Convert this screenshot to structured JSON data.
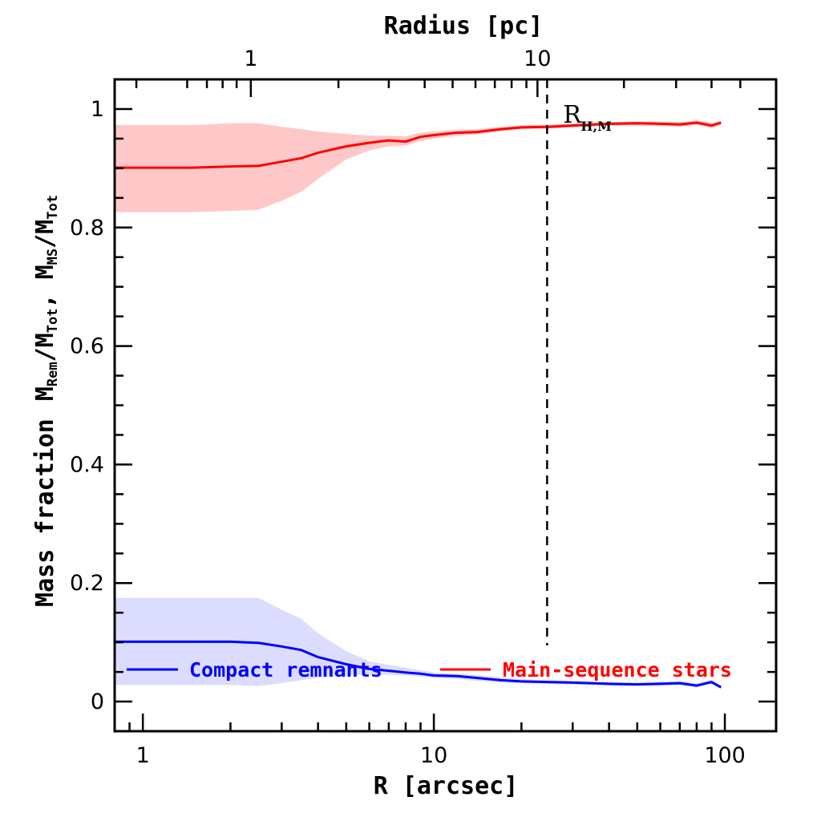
{
  "chart_data": {
    "type": "line",
    "xlabel": "R [arcsec]",
    "xlabel_top": "Radius [pc]",
    "ylabel_parts": [
      "Mass fraction",
      "M",
      "Rem",
      "/M",
      "Tot",
      ", M",
      "MS",
      "/M",
      "Tot"
    ],
    "x_scale": "log",
    "xlim": [
      0.8,
      150
    ],
    "ylim": [
      -0.05,
      1.05
    ],
    "x_ticks": [
      1,
      10,
      100
    ],
    "x_tick_labels": [
      "1",
      "10",
      "100"
    ],
    "y_ticks": [
      0,
      0.2,
      0.4,
      0.6,
      0.8,
      1
    ],
    "y_tick_labels": [
      "0",
      "0.2",
      "0.4",
      "0.6",
      "0.8",
      "1"
    ],
    "top_axis": {
      "tick_labels": [
        "1",
        "10"
      ],
      "tick_positions_arcsec": [
        2.35,
        22.7
      ],
      "minor_positions_arcsec": [
        0.95,
        1.42,
        1.66,
        1.88,
        2.1,
        4.7,
        7.0,
        9.3,
        11.6,
        13.9,
        16.2,
        18.5,
        20.8,
        45,
        68,
        90,
        113
      ]
    },
    "vline": {
      "x": 24.5,
      "label_main": "R",
      "label_sub": "H,M"
    },
    "legend_position": "bottom",
    "series": [
      {
        "name": "Compact remnants",
        "color": "#0000ff",
        "band_color": "#dcdcff",
        "x": [
          0.8,
          1.0,
          1.5,
          2.0,
          2.5,
          3.0,
          3.5,
          4.0,
          5.0,
          6.0,
          7.0,
          8.0,
          9.0,
          10.0,
          12.0,
          14.0,
          17.0,
          20.0,
          25.0,
          30.0,
          40.0,
          50.0,
          60.0,
          70.0,
          80.0,
          90.0,
          97.0
        ],
        "y": [
          0.101,
          0.101,
          0.101,
          0.101,
          0.099,
          0.093,
          0.087,
          0.075,
          0.063,
          0.055,
          0.052,
          0.049,
          0.047,
          0.044,
          0.043,
          0.04,
          0.036,
          0.034,
          0.033,
          0.032,
          0.03,
          0.029,
          0.03,
          0.031,
          0.027,
          0.033,
          0.024
        ],
        "y_low": [
          0.028,
          0.028,
          0.028,
          0.028,
          0.026,
          0.031,
          0.036,
          0.04,
          0.044,
          0.045,
          0.045,
          0.044,
          0.042,
          0.04,
          0.038,
          0.035,
          0.032,
          0.031,
          0.03,
          0.029,
          0.027,
          0.026,
          0.027,
          0.028,
          0.024,
          0.03,
          0.023
        ],
        "y_high": [
          0.175,
          0.175,
          0.175,
          0.175,
          0.175,
          0.155,
          0.14,
          0.115,
          0.085,
          0.068,
          0.062,
          0.057,
          0.053,
          0.049,
          0.047,
          0.045,
          0.041,
          0.038,
          0.036,
          0.035,
          0.033,
          0.032,
          0.034,
          0.035,
          0.031,
          0.037,
          0.027
        ]
      },
      {
        "name": "Main-sequence stars",
        "color": "#ff0000",
        "band_color": "#ffc8c8",
        "x": [
          0.8,
          1.0,
          1.5,
          2.0,
          2.5,
          3.0,
          3.5,
          4.0,
          5.0,
          6.0,
          7.0,
          8.0,
          9.0,
          10.0,
          12.0,
          14.0,
          17.0,
          20.0,
          25.0,
          30.0,
          40.0,
          50.0,
          60.0,
          70.0,
          80.0,
          90.0,
          97.0
        ],
        "y": [
          0.901,
          0.901,
          0.901,
          0.903,
          0.904,
          0.911,
          0.917,
          0.926,
          0.937,
          0.943,
          0.947,
          0.945,
          0.953,
          0.956,
          0.96,
          0.961,
          0.966,
          0.969,
          0.97,
          0.972,
          0.975,
          0.976,
          0.975,
          0.974,
          0.977,
          0.972,
          0.977
        ],
        "y_low": [
          0.826,
          0.826,
          0.826,
          0.828,
          0.83,
          0.845,
          0.86,
          0.882,
          0.915,
          0.93,
          0.937,
          0.938,
          0.946,
          0.95,
          0.955,
          0.957,
          0.962,
          0.966,
          0.967,
          0.969,
          0.972,
          0.972,
          0.971,
          0.97,
          0.973,
          0.968,
          0.973
        ],
        "y_high": [
          0.973,
          0.973,
          0.973,
          0.976,
          0.976,
          0.97,
          0.966,
          0.962,
          0.958,
          0.955,
          0.955,
          0.954,
          0.96,
          0.962,
          0.965,
          0.966,
          0.97,
          0.973,
          0.974,
          0.976,
          0.978,
          0.979,
          0.979,
          0.978,
          0.981,
          0.977,
          0.98
        ]
      }
    ]
  }
}
